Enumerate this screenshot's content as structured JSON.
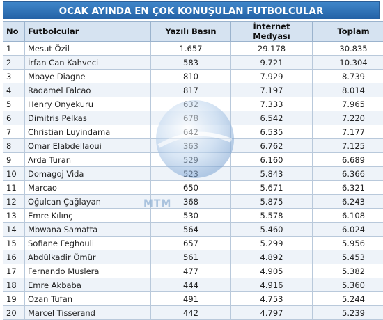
{
  "title": "OCAK AYINDA EN ÇOK KONUŞULAN FUTBOLCULAR",
  "watermark_text": "MTM",
  "columns": [
    "No",
    "Futbolcular",
    "Yazılı Basın",
    "İnternet Medyası",
    "Toplam"
  ],
  "rows": [
    [
      "1",
      "Mesut Özil",
      "1.657",
      "29.178",
      "30.835"
    ],
    [
      "2",
      "İrfan Can Kahveci",
      "583",
      "9.721",
      "10.304"
    ],
    [
      "3",
      "Mbaye Diagne",
      "810",
      "7.929",
      "8.739"
    ],
    [
      "4",
      "Radamel Falcao",
      "817",
      "7.197",
      "8.014"
    ],
    [
      "5",
      "Henry Onyekuru",
      "632",
      "7.333",
      "7.965"
    ],
    [
      "6",
      "Dimitris Pelkas",
      "678",
      "6.542",
      "7.220"
    ],
    [
      "7",
      "Christian Luyindama",
      "642",
      "6.535",
      "7.177"
    ],
    [
      "8",
      "Omar Elabdellaoui",
      "363",
      "6.762",
      "7.125"
    ],
    [
      "9",
      "Arda Turan",
      "529",
      "6.160",
      "6.689"
    ],
    [
      "10",
      "Domagoj Vida",
      "523",
      "5.843",
      "6.366"
    ],
    [
      "11",
      "Marcao",
      "650",
      "5.671",
      "6.321"
    ],
    [
      "12",
      "Oğulcan Çağlayan",
      "368",
      "5.875",
      "6.243"
    ],
    [
      "13",
      "Emre Kılınç",
      "530",
      "5.578",
      "6.108"
    ],
    [
      "14",
      "Mbwana Samatta",
      "564",
      "5.460",
      "6.024"
    ],
    [
      "15",
      "Sofiane Feghouli",
      "657",
      "5.299",
      "5.956"
    ],
    [
      "16",
      "Abdülkadir Ömür",
      "561",
      "4.892",
      "5.453"
    ],
    [
      "17",
      "Fernando Muslera",
      "477",
      "4.905",
      "5.382"
    ],
    [
      "18",
      "Emre Akbaba",
      "444",
      "4.916",
      "5.360"
    ],
    [
      "19",
      "Ozan Tufan",
      "491",
      "4.753",
      "5.244"
    ],
    [
      "20",
      "Marcel Tisserand",
      "442",
      "4.797",
      "5.239"
    ]
  ]
}
